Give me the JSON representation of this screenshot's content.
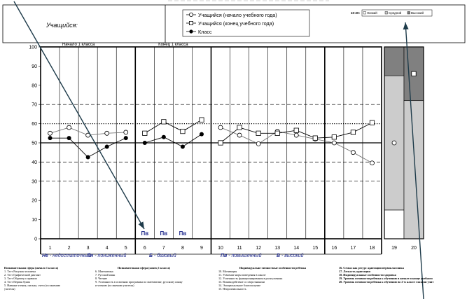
{
  "header": {
    "student_label": "Учащийся:",
    "legend": [
      {
        "label": "Учащийся (начало учебного года)",
        "marker": "open-circle"
      },
      {
        "label": "Учащийся (конец учебного года)",
        "marker": "open-square"
      },
      {
        "label": "Класс",
        "marker": "filled-circle"
      }
    ],
    "level_legend_prefix": "10-20:",
    "level_legend": [
      "Низкий",
      "Средний",
      "Высокий"
    ]
  },
  "chart_data": {
    "type": "line",
    "ylim": [
      0,
      100
    ],
    "yticks": [
      0,
      10,
      20,
      30,
      40,
      50,
      60,
      70,
      80,
      90,
      100
    ],
    "x": [
      1,
      2,
      3,
      4,
      5,
      6,
      7,
      8,
      9,
      10,
      11,
      12,
      13,
      14,
      15,
      16,
      17,
      18,
      19,
      20
    ],
    "section_titles": [
      {
        "text": "Начало 1 класса",
        "x": 2.5
      },
      {
        "text": "Конец 1 класса",
        "x": 7.5
      }
    ],
    "reference_lines": [
      {
        "y": 50,
        "style": "solid"
      },
      {
        "y": 60,
        "style": "dotted"
      },
      {
        "y": 70,
        "style": "dashed"
      },
      {
        "y": 40,
        "style": "dashed"
      },
      {
        "y": 30,
        "style": "dashed"
      }
    ],
    "series": [
      {
        "marker": "open-circle",
        "segments": [
          {
            "x": [
              1,
              2,
              3,
              4,
              5
            ],
            "y": [
              55,
              58,
              54,
              55,
              55.5
            ]
          },
          {
            "x": [
              10,
              11,
              12,
              13,
              14,
              15,
              16,
              17,
              18
            ],
            "y": [
              58,
              54,
              49.5,
              56,
              54,
              52,
              50,
              45,
              39.5
            ]
          }
        ]
      },
      {
        "marker": "open-square",
        "segments": [
          {
            "x": [
              6,
              7,
              8,
              9
            ],
            "y": [
              55,
              61,
              56,
              62
            ]
          },
          {
            "x": [
              10,
              11,
              12,
              13,
              14,
              15,
              16,
              17,
              18
            ],
            "y": [
              50,
              58,
              55,
              55,
              56.5,
              52.5,
              53,
              55.5,
              60.5
            ]
          }
        ]
      },
      {
        "marker": "filled-circle",
        "segments": [
          {
            "x": [
              1,
              2,
              3,
              4,
              5
            ],
            "y": [
              52.5,
              52.5,
              42.5,
              48,
              52.5
            ]
          },
          {
            "x": [
              6,
              7,
              8,
              9
            ],
            "y": [
              50,
              53,
              48,
              54.5
            ]
          }
        ]
      }
    ],
    "level_labels": [
      {
        "x": 6,
        "text": "Пв"
      },
      {
        "x": 7,
        "text": "Пв"
      },
      {
        "x": 8,
        "text": "Пв"
      }
    ],
    "stacked_bars": [
      {
        "x": 19,
        "bands": [
          {
            "from": 0,
            "to": 15,
            "color": "#ffffff"
          },
          {
            "from": 15,
            "to": 85,
            "color": "#cccccc"
          },
          {
            "from": 85,
            "to": 100,
            "color": "#808080"
          }
        ],
        "point": {
          "y": 50,
          "marker": "open-circle"
        }
      },
      {
        "x": 20,
        "bands": [
          {
            "from": 0,
            "to": 72,
            "color": "#cccccc"
          },
          {
            "from": 72,
            "to": 100,
            "color": "#808080"
          }
        ],
        "point": {
          "y": 86,
          "marker": "open-square"
        }
      }
    ],
    "level_key": [
      {
        "code": "Не",
        "text": "- недостаточный"
      },
      {
        "code": "Пн",
        "text": "- пониженный"
      },
      {
        "code": "Б",
        "text": "- базовый"
      },
      {
        "code": "Пв",
        "text": "- повышенный"
      },
      {
        "code": "В",
        "text": "- высокий"
      }
    ],
    "colors": {
      "text_blue": "#1f2a8c",
      "light_band": "#cccccc",
      "dark_band": "#808080",
      "arrow": "#1e3b4a"
    }
  },
  "footer": {
    "columns": [
      {
        "title": "Познавательная сфера (начало 1 класса)",
        "items": [
          "1. Тест Рисунок человека",
          "2. Тест Графический диктант",
          "3. Тест Образец и правило",
          "4. Тест Первая буква",
          "5. Навыки чтения, письма, счета (по мнению",
          "учителя)"
        ]
      },
      {
        "title": "Познавательная сфера (конец 1 класса)",
        "items": [
          "6. Математика",
          "7. Русский язык",
          "8. Чтение",
          "9. Успешность в освоении программы по математике, русскому языку",
          "и чтению (по мнению учителя)"
        ]
      },
      {
        "title": "Индивидуально-личностные особенности ребенка",
        "items": [
          "10. Мотивация",
          "11. Усвоение норм поведения в школе",
          "12. Успешность функционирования в роли ученика",
          "13. Взаимодействие со сверстниками",
          "14. Эмоциональное благополучие",
          "15. Непроизвольность"
        ]
      },
      {
        "title": "16. Семья как ресурс адаптации первоклассника",
        "items": [
          "17. Легкость адаптации",
          "18. Индивидуальные особенности здоровья",
          "19. Уровень готовности ребенка к обучению в начале и конце учебного",
          "20. Уровень готовности ребенка к обучению во 2-м классе глазами учит"
        ]
      }
    ]
  }
}
